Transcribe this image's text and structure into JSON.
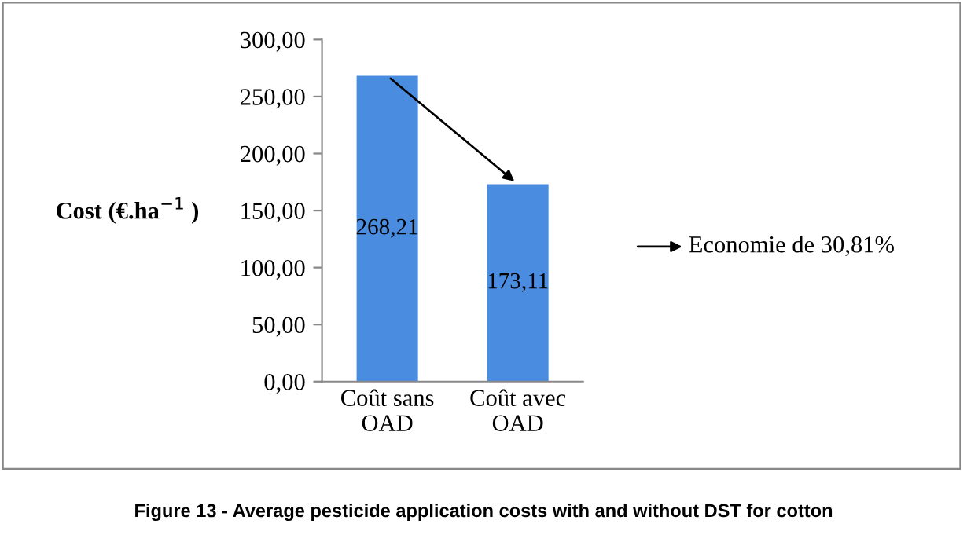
{
  "chart_data": {
    "type": "bar",
    "categories": [
      "Coût sans\nOAD",
      "Coût avec\nOAD"
    ],
    "values": [
      268.21,
      173.11
    ],
    "value_labels": [
      "268,21",
      "173,11"
    ],
    "color": "#4a8de0",
    "ylabel": "Cost (€.ha$^{−1}$ )",
    "ylim": [
      0,
      300
    ],
    "yticks": [
      {
        "value": 0,
        "label": "0,00"
      },
      {
        "value": 50,
        "label": "50,00"
      },
      {
        "value": 100,
        "label": "100,00"
      },
      {
        "value": 150,
        "label": "150,00"
      },
      {
        "value": 200,
        "label": "200,00"
      },
      {
        "value": 250,
        "label": "250,00"
      },
      {
        "value": 300,
        "label": "300,00"
      }
    ],
    "grid": false,
    "legend": false,
    "annotations": [
      "Economie de 30,81%",
      "Figure 13 - Average pesticide application costs with and without DST for cotton"
    ]
  }
}
